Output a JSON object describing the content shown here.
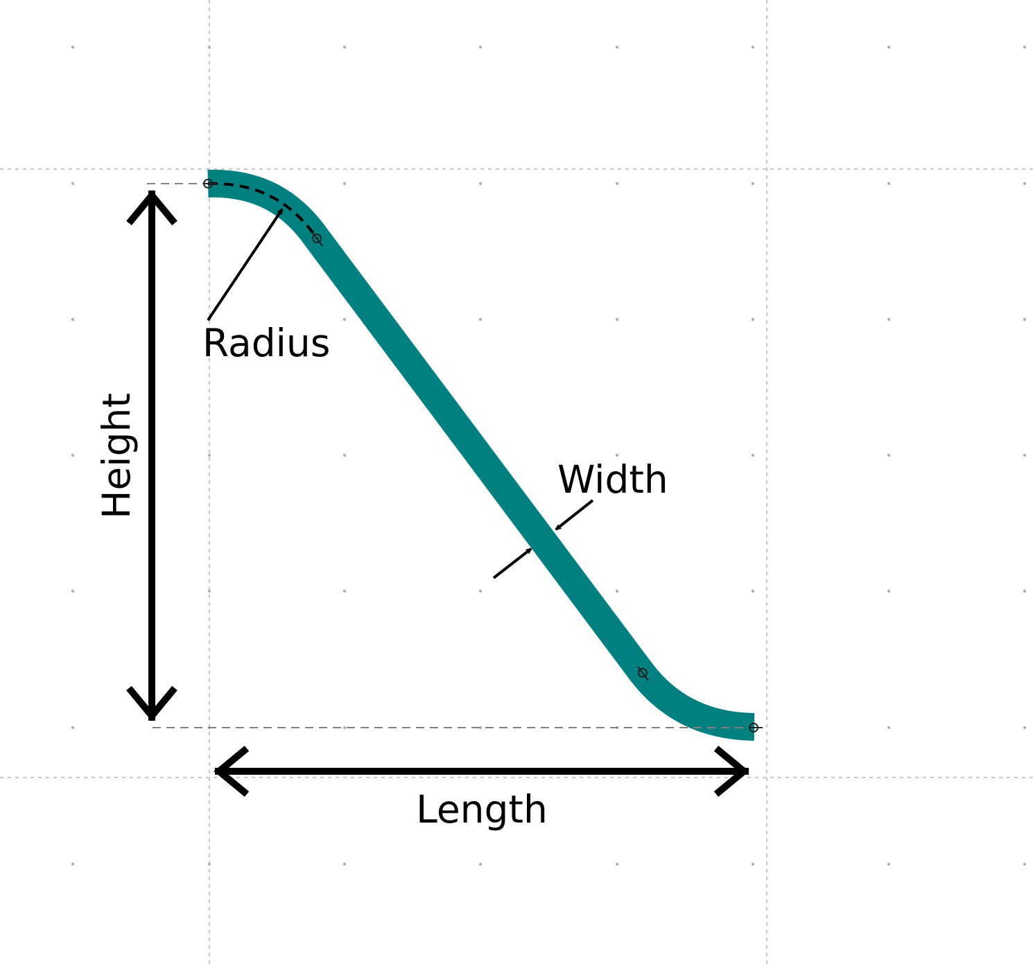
{
  "labels": {
    "radius": "Radius",
    "height": "Height",
    "width": "Width",
    "length": "Length"
  },
  "colors": {
    "track": "#008080",
    "arrow": "#000000",
    "grid_major": "#c0c0c0",
    "grid_minor": "#aaaaaa",
    "guide": "#808080"
  }
}
